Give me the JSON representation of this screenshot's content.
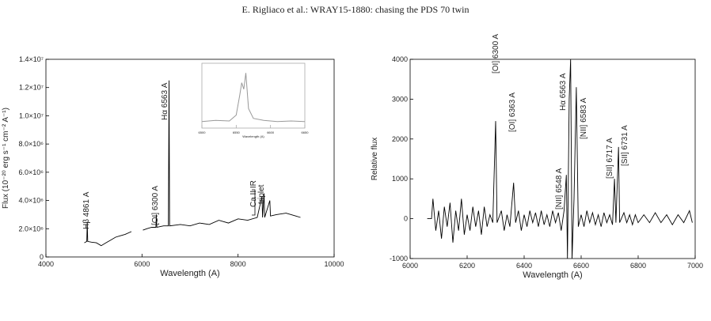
{
  "header": {
    "title": "E. Rigliaco et al.: WRAY15-1880: chasing the PDS 70 twin"
  },
  "chart_data": [
    {
      "type": "line",
      "xlabel": "Wavelength (A)",
      "ylabel": "Flux (10⁻²⁰ erg s⁻¹ cm⁻² A⁻¹)",
      "color": "#000000",
      "xlim": [
        4000,
        10000
      ],
      "xticks": [
        4000,
        6000,
        8000,
        10000
      ],
      "ylim": [
        0,
        14000000
      ],
      "yticks": [
        0,
        {
          "value": 2000000,
          "label": "2.0×10⁶"
        },
        {
          "value": 4000000,
          "label": "4.0×10⁶"
        },
        {
          "value": 6000000,
          "label": "6.0×10⁶"
        },
        {
          "value": 8000000,
          "label": "8.0×10⁶"
        },
        {
          "value": 10000000,
          "label": "1.0×10⁷"
        },
        {
          "value": 12000000,
          "label": "1.2×10⁷"
        },
        {
          "value": 14000000,
          "label": "1.4×10⁷"
        }
      ],
      "annotations": [
        "Hβ 4861 A",
        "[OI] 6300 A",
        "Hα 6563 A",
        "Ca II IR",
        "triplet"
      ],
      "x": [
        4800,
        4850,
        4861,
        4870,
        4950,
        5050,
        5150,
        5250,
        5350,
        5450,
        5550,
        5650,
        5780,
        5850,
        6020,
        6100,
        6200,
        6290,
        6300,
        6310,
        6450,
        6550,
        6563,
        6575,
        6800,
        7000,
        7200,
        7400,
        7600,
        7800,
        8000,
        8200,
        8400,
        8498,
        8510,
        8542,
        8555,
        8662,
        8675,
        8800,
        9000,
        9200,
        9300
      ],
      "values": [
        1000000,
        1100000,
        2500000,
        1100000,
        1050000,
        1000000,
        800000,
        1000000,
        1200000,
        1400000,
        1500000,
        1600000,
        1800000,
        null,
        1900000,
        2000000,
        2100000,
        2100000,
        3000000,
        2100000,
        2200000,
        2200000,
        12500000,
        2200000,
        2300000,
        2200000,
        2400000,
        2300000,
        2600000,
        2400000,
        2700000,
        2600000,
        2800000,
        4300000,
        2800000,
        4500000,
        2800000,
        4000000,
        2900000,
        3000000,
        3100000,
        2900000,
        2800000
      ]
    },
    {
      "type": "line",
      "xlabel": "Wavelength (A)",
      "color": "#999999",
      "xlim": [
        6500,
        6650
      ],
      "xticks": [
        6500,
        6550,
        6600,
        6650
      ],
      "ylim": [
        0,
        1
      ],
      "x": [
        6500,
        6520,
        6540,
        6550,
        6555,
        6558,
        6561,
        6564,
        6568,
        6575,
        6590,
        6610,
        6630,
        6650
      ],
      "values": [
        0.1,
        0.12,
        0.11,
        0.2,
        0.5,
        0.7,
        0.6,
        0.85,
        0.3,
        0.15,
        0.12,
        0.1,
        0.11,
        0.1
      ]
    },
    {
      "type": "line",
      "xlabel": "Wavelength (A)",
      "ylabel": "Relative flux",
      "color": "#000000",
      "xlim": [
        6000,
        7000
      ],
      "xticks": [
        6000,
        6200,
        6400,
        6600,
        6800,
        7000
      ],
      "ylim": [
        -1000,
        4000
      ],
      "yticks": [
        -1000,
        0,
        1000,
        2000,
        3000,
        4000
      ],
      "annotations": [
        "[OI] 6300 A",
        "[OI] 6363 A",
        "[NII] 6548 A",
        "Hα 6563 A",
        "[NII] 6583 A",
        "[SII] 6717 A",
        "[SII] 6731 A"
      ],
      "x": [
        6060,
        6075,
        6080,
        6090,
        6100,
        6110,
        6120,
        6130,
        6140,
        6150,
        6160,
        6170,
        6180,
        6190,
        6200,
        6210,
        6220,
        6230,
        6240,
        6250,
        6260,
        6270,
        6280,
        6290,
        6300,
        6305,
        6320,
        6330,
        6340,
        6350,
        6363,
        6370,
        6380,
        6390,
        6400,
        6410,
        6420,
        6430,
        6440,
        6450,
        6460,
        6470,
        6480,
        6490,
        6500,
        6510,
        6520,
        6530,
        6540,
        6548,
        6552,
        6558,
        6563,
        6568,
        6575,
        6583,
        6590,
        6600,
        6610,
        6620,
        6630,
        6640,
        6650,
        6660,
        6670,
        6680,
        6690,
        6700,
        6710,
        6717,
        6722,
        6731,
        6735,
        6750,
        6760,
        6770,
        6780,
        6790,
        6800,
        6820,
        6840,
        6860,
        6880,
        6900,
        6920,
        6940,
        6960,
        6980,
        6990
      ],
      "values": [
        0,
        0,
        500,
        -300,
        200,
        -500,
        300,
        -200,
        400,
        -600,
        200,
        -300,
        500,
        -400,
        100,
        -300,
        300,
        -200,
        200,
        -400,
        300,
        -200,
        100,
        -100,
        2450,
        -100,
        200,
        -300,
        100,
        -200,
        900,
        -100,
        200,
        -300,
        100,
        -200,
        200,
        -100,
        150,
        -200,
        200,
        -150,
        100,
        -200,
        200,
        -100,
        150,
        -300,
        200,
        1100,
        -1000,
        3000,
        4000,
        -1000,
        500,
        3300,
        -200,
        100,
        -200,
        200,
        -100,
        150,
        -150,
        100,
        -200,
        150,
        -100,
        100,
        -150,
        1000,
        -100,
        1800,
        -100,
        150,
        -100,
        100,
        -150,
        100,
        -100,
        100,
        -100,
        150,
        -100,
        100,
        -150,
        100,
        -100,
        200,
        -100
      ]
    }
  ]
}
